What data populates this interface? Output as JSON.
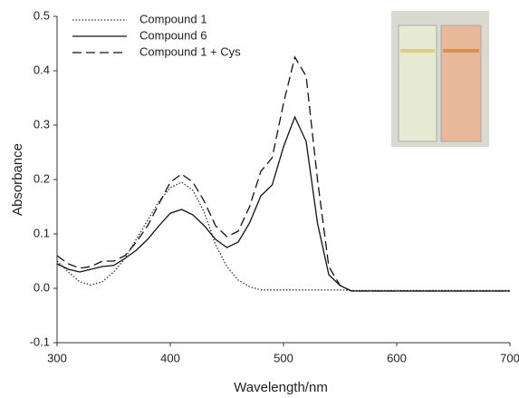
{
  "chart_data": {
    "type": "line",
    "x_label": "Wavelength/nm",
    "y_label": "Absorbance",
    "x": [
      300,
      310,
      320,
      330,
      340,
      350,
      360,
      370,
      380,
      390,
      400,
      410,
      420,
      430,
      440,
      450,
      460,
      470,
      480,
      490,
      500,
      510,
      520,
      530,
      540,
      550,
      560,
      570,
      580,
      590,
      600,
      610,
      620,
      630,
      640,
      650,
      660,
      670,
      680,
      690,
      700
    ],
    "series": [
      {
        "name": "Compound 1",
        "color": "#333333",
        "dash": "dotted",
        "values": [
          0.05,
          0.03,
          0.012,
          0.006,
          0.012,
          0.03,
          0.055,
          0.09,
          0.125,
          0.16,
          0.185,
          0.195,
          0.18,
          0.14,
          0.08,
          0.04,
          0.015,
          0.003,
          -0.003,
          -0.003,
          -0.003,
          -0.003,
          -0.003,
          -0.003,
          -0.003,
          -0.003,
          -0.004,
          -0.004,
          -0.004,
          -0.004,
          -0.004,
          -0.004,
          -0.004,
          -0.004,
          -0.004,
          -0.004,
          -0.004,
          -0.004,
          -0.004,
          -0.004,
          -0.004
        ]
      },
      {
        "name": "Compound 6",
        "color": "#111111",
        "dash": "solid",
        "values": [
          0.045,
          0.035,
          0.03,
          0.035,
          0.04,
          0.042,
          0.055,
          0.07,
          0.09,
          0.115,
          0.138,
          0.145,
          0.135,
          0.115,
          0.09,
          0.075,
          0.085,
          0.12,
          0.17,
          0.19,
          0.26,
          0.315,
          0.27,
          0.12,
          0.025,
          0.005,
          -0.005,
          -0.005,
          -0.005,
          -0.005,
          -0.005,
          -0.005,
          -0.005,
          -0.005,
          -0.005,
          -0.005,
          -0.005,
          -0.005,
          -0.005,
          -0.005,
          -0.005
        ]
      },
      {
        "name": "Compound 1 + Cys",
        "color": "#111111",
        "dash": "dashed",
        "values": [
          0.06,
          0.045,
          0.037,
          0.04,
          0.05,
          0.05,
          0.06,
          0.085,
          0.115,
          0.155,
          0.195,
          0.21,
          0.195,
          0.16,
          0.115,
          0.095,
          0.105,
          0.15,
          0.215,
          0.24,
          0.34,
          0.425,
          0.39,
          0.2,
          0.04,
          0.005,
          -0.005,
          -0.005,
          -0.005,
          -0.005,
          -0.005,
          -0.005,
          -0.005,
          -0.005,
          -0.005,
          -0.005,
          -0.005,
          -0.005,
          -0.005,
          -0.005,
          -0.005
        ]
      }
    ],
    "xlim": [
      300,
      700
    ],
    "xticks": [
      300,
      400,
      500,
      600,
      700
    ],
    "ylim": [
      -0.1,
      0.5
    ],
    "yticks": [
      -0.1,
      {
        "value": 0,
        "label": "0.0"
      },
      0.1,
      0.2,
      0.3,
      0.4,
      0.5
    ],
    "grid": false,
    "legend": "top-left"
  }
}
